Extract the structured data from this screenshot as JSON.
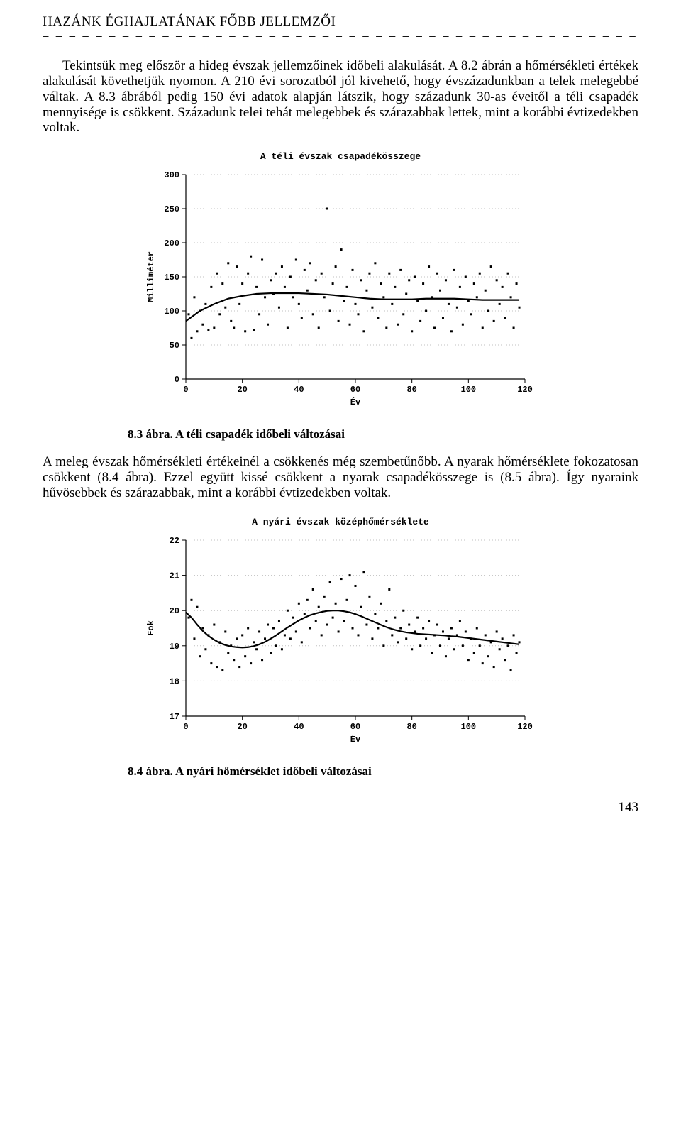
{
  "header": "HAZÁNK ÉGHAJLATÁNAK FŐBB JELLEMZŐI",
  "dashline": "— — — — — — — — — — — — — — — — — — — — — — — — — — — — — — — — — — — — — — — — — — — — — — — — — — — — — — — — — — — — — — — — — — — — —",
  "para1": "Tekintsük meg először a hideg évszak jellemzőinek időbeli alakulását. A 8.2 ábrán a hőmérsékleti értékek alakulását követhetjük nyomon. A 210 évi sorozatból jól kivehető, hogy évszázadunkban a telek melegebbé váltak. A 8.3 ábrából pedig 150  évi adatok alapján látszik, hogy századunk 30-as éveitől a téli csapadék mennyisége is csökkent. Századunk telei tehát melegebbek és szárazabbak lettek, mint a korábbi évtizedekben voltak.",
  "chart1": {
    "type": "scatter-with-curve",
    "title": "A téli évszak csapadékösszege",
    "xlabel": "Év",
    "ylabel": "Milliméter",
    "xlim": [
      0,
      120
    ],
    "ylim": [
      0,
      300
    ],
    "xticks": [
      0,
      20,
      40,
      60,
      80,
      100,
      120
    ],
    "yticks": [
      0,
      50,
      100,
      150,
      200,
      250,
      300
    ],
    "point_color": "#000000",
    "curve_color": "#000000",
    "grid_color": "#c0c0c0",
    "background_color": "#ffffff",
    "axis_font": "Courier New",
    "axis_fontsize": 12,
    "marker_size": 3,
    "curve": [
      [
        0,
        85
      ],
      [
        5,
        100
      ],
      [
        10,
        110
      ],
      [
        15,
        118
      ],
      [
        20,
        122
      ],
      [
        25,
        125
      ],
      [
        30,
        126
      ],
      [
        35,
        126
      ],
      [
        40,
        126
      ],
      [
        45,
        125
      ],
      [
        50,
        124
      ],
      [
        55,
        122
      ],
      [
        60,
        120
      ],
      [
        65,
        118
      ],
      [
        70,
        117
      ],
      [
        75,
        117
      ],
      [
        80,
        117
      ],
      [
        85,
        118
      ],
      [
        90,
        118
      ],
      [
        95,
        118
      ],
      [
        100,
        117
      ],
      [
        105,
        116
      ],
      [
        110,
        116
      ],
      [
        115,
        116
      ],
      [
        118,
        116
      ]
    ],
    "points": [
      [
        1,
        95
      ],
      [
        2,
        60
      ],
      [
        3,
        120
      ],
      [
        4,
        70
      ],
      [
        5,
        100
      ],
      [
        6,
        80
      ],
      [
        7,
        110
      ],
      [
        8,
        72
      ],
      [
        9,
        135
      ],
      [
        10,
        75
      ],
      [
        11,
        155
      ],
      [
        12,
        95
      ],
      [
        13,
        140
      ],
      [
        14,
        105
      ],
      [
        15,
        170
      ],
      [
        16,
        85
      ],
      [
        17,
        75
      ],
      [
        18,
        165
      ],
      [
        19,
        110
      ],
      [
        20,
        140
      ],
      [
        21,
        70
      ],
      [
        22,
        155
      ],
      [
        23,
        180
      ],
      [
        24,
        72
      ],
      [
        25,
        135
      ],
      [
        26,
        95
      ],
      [
        27,
        175
      ],
      [
        28,
        120
      ],
      [
        29,
        80
      ],
      [
        30,
        145
      ],
      [
        31,
        125
      ],
      [
        32,
        155
      ],
      [
        33,
        105
      ],
      [
        34,
        165
      ],
      [
        35,
        135
      ],
      [
        36,
        75
      ],
      [
        37,
        150
      ],
      [
        38,
        120
      ],
      [
        39,
        175
      ],
      [
        40,
        110
      ],
      [
        41,
        90
      ],
      [
        42,
        160
      ],
      [
        43,
        130
      ],
      [
        44,
        170
      ],
      [
        45,
        95
      ],
      [
        46,
        145
      ],
      [
        47,
        75
      ],
      [
        48,
        155
      ],
      [
        49,
        120
      ],
      [
        50,
        250
      ],
      [
        51,
        100
      ],
      [
        52,
        140
      ],
      [
        53,
        165
      ],
      [
        54,
        85
      ],
      [
        55,
        190
      ],
      [
        56,
        115
      ],
      [
        57,
        135
      ],
      [
        58,
        80
      ],
      [
        59,
        160
      ],
      [
        60,
        110
      ],
      [
        61,
        95
      ],
      [
        62,
        145
      ],
      [
        63,
        70
      ],
      [
        64,
        130
      ],
      [
        65,
        155
      ],
      [
        66,
        105
      ],
      [
        67,
        170
      ],
      [
        68,
        90
      ],
      [
        69,
        140
      ],
      [
        70,
        120
      ],
      [
        71,
        75
      ],
      [
        72,
        155
      ],
      [
        73,
        110
      ],
      [
        74,
        135
      ],
      [
        75,
        80
      ],
      [
        76,
        160
      ],
      [
        77,
        95
      ],
      [
        78,
        125
      ],
      [
        79,
        145
      ],
      [
        80,
        70
      ],
      [
        81,
        150
      ],
      [
        82,
        115
      ],
      [
        83,
        85
      ],
      [
        84,
        140
      ],
      [
        85,
        100
      ],
      [
        86,
        165
      ],
      [
        87,
        120
      ],
      [
        88,
        75
      ],
      [
        89,
        155
      ],
      [
        90,
        130
      ],
      [
        91,
        90
      ],
      [
        92,
        145
      ],
      [
        93,
        110
      ],
      [
        94,
        70
      ],
      [
        95,
        160
      ],
      [
        96,
        105
      ],
      [
        97,
        135
      ],
      [
        98,
        80
      ],
      [
        99,
        150
      ],
      [
        100,
        115
      ],
      [
        101,
        95
      ],
      [
        102,
        140
      ],
      [
        103,
        120
      ],
      [
        104,
        155
      ],
      [
        105,
        75
      ],
      [
        106,
        130
      ],
      [
        107,
        100
      ],
      [
        108,
        165
      ],
      [
        109,
        85
      ],
      [
        110,
        145
      ],
      [
        111,
        110
      ],
      [
        112,
        135
      ],
      [
        113,
        90
      ],
      [
        114,
        155
      ],
      [
        115,
        120
      ],
      [
        116,
        75
      ],
      [
        117,
        140
      ],
      [
        118,
        105
      ]
    ]
  },
  "caption1_num": "8.3 ábra.",
  "caption1_txt": " A téli csapadék időbeli változásai",
  "para2": "A meleg évszak hőmérsékleti értékeinél a csökkenés még  szembetűnőbb. A nyarak hőmérséklete fokozatosan csökkent (8.4 ábra). Ezzel együtt kissé csökkent a nyarak csapadékösszege is (8.5 ábra). Így nyaraink hűvösebbek és szárazabbak, mint a korábbi évtizedekben voltak.",
  "chart2": {
    "type": "scatter-with-curve",
    "title": "A nyári évszak középhőmérséklete",
    "xlabel": "Év",
    "ylabel": "Fok",
    "xlim": [
      0,
      120
    ],
    "ylim": [
      17,
      22
    ],
    "xticks": [
      0,
      20,
      40,
      60,
      80,
      100,
      120
    ],
    "yticks": [
      17,
      18,
      19,
      20,
      21,
      22
    ],
    "point_color": "#000000",
    "curve_color": "#000000",
    "grid_color": "#c0c0c0",
    "background_color": "#ffffff",
    "axis_font": "Courier New",
    "axis_fontsize": 12,
    "marker_size": 3,
    "curve": [
      [
        0,
        19.95
      ],
      [
        2,
        19.8
      ],
      [
        4,
        19.6
      ],
      [
        6,
        19.42
      ],
      [
        8,
        19.28
      ],
      [
        10,
        19.17
      ],
      [
        12,
        19.08
      ],
      [
        14,
        19.02
      ],
      [
        16,
        18.98
      ],
      [
        18,
        18.96
      ],
      [
        20,
        18.95
      ],
      [
        22,
        18.96
      ],
      [
        24,
        18.99
      ],
      [
        26,
        19.04
      ],
      [
        28,
        19.11
      ],
      [
        30,
        19.2
      ],
      [
        32,
        19.3
      ],
      [
        34,
        19.41
      ],
      [
        36,
        19.52
      ],
      [
        38,
        19.62
      ],
      [
        40,
        19.72
      ],
      [
        42,
        19.8
      ],
      [
        44,
        19.87
      ],
      [
        46,
        19.92
      ],
      [
        48,
        19.96
      ],
      [
        50,
        19.99
      ],
      [
        52,
        20.0
      ],
      [
        54,
        20.0
      ],
      [
        56,
        19.98
      ],
      [
        58,
        19.95
      ],
      [
        60,
        19.9
      ],
      [
        62,
        19.84
      ],
      [
        64,
        19.77
      ],
      [
        66,
        19.7
      ],
      [
        68,
        19.63
      ],
      [
        70,
        19.56
      ],
      [
        72,
        19.5
      ],
      [
        74,
        19.45
      ],
      [
        76,
        19.41
      ],
      [
        78,
        19.38
      ],
      [
        80,
        19.36
      ],
      [
        82,
        19.34
      ],
      [
        84,
        19.33
      ],
      [
        86,
        19.32
      ],
      [
        88,
        19.31
      ],
      [
        90,
        19.3
      ],
      [
        92,
        19.29
      ],
      [
        94,
        19.27
      ],
      [
        96,
        19.26
      ],
      [
        98,
        19.24
      ],
      [
        100,
        19.22
      ],
      [
        102,
        19.2
      ],
      [
        104,
        19.18
      ],
      [
        106,
        19.16
      ],
      [
        108,
        19.14
      ],
      [
        110,
        19.12
      ],
      [
        112,
        19.1
      ],
      [
        114,
        19.08
      ],
      [
        116,
        19.06
      ],
      [
        118,
        19.04
      ]
    ],
    "points": [
      [
        1,
        19.8
      ],
      [
        2,
        20.3
      ],
      [
        3,
        19.2
      ],
      [
        4,
        20.1
      ],
      [
        5,
        18.7
      ],
      [
        6,
        19.5
      ],
      [
        7,
        18.9
      ],
      [
        8,
        19.3
      ],
      [
        9,
        18.5
      ],
      [
        10,
        19.6
      ],
      [
        11,
        18.4
      ],
      [
        12,
        19.1
      ],
      [
        13,
        18.3
      ],
      [
        14,
        19.4
      ],
      [
        15,
        18.8
      ],
      [
        16,
        19.0
      ],
      [
        17,
        18.6
      ],
      [
        18,
        19.2
      ],
      [
        19,
        18.4
      ],
      [
        20,
        19.3
      ],
      [
        21,
        18.7
      ],
      [
        22,
        19.5
      ],
      [
        23,
        18.5
      ],
      [
        24,
        19.1
      ],
      [
        25,
        18.9
      ],
      [
        26,
        19.4
      ],
      [
        27,
        18.6
      ],
      [
        28,
        19.2
      ],
      [
        29,
        19.6
      ],
      [
        30,
        18.8
      ],
      [
        31,
        19.5
      ],
      [
        32,
        19.0
      ],
      [
        33,
        19.7
      ],
      [
        34,
        18.9
      ],
      [
        35,
        19.3
      ],
      [
        36,
        20.0
      ],
      [
        37,
        19.2
      ],
      [
        38,
        19.8
      ],
      [
        39,
        19.4
      ],
      [
        40,
        20.2
      ],
      [
        41,
        19.1
      ],
      [
        42,
        19.9
      ],
      [
        43,
        20.3
      ],
      [
        44,
        19.5
      ],
      [
        45,
        20.6
      ],
      [
        46,
        19.7
      ],
      [
        47,
        20.1
      ],
      [
        48,
        19.3
      ],
      [
        49,
        20.4
      ],
      [
        50,
        19.6
      ],
      [
        51,
        20.8
      ],
      [
        52,
        19.8
      ],
      [
        53,
        20.2
      ],
      [
        54,
        19.4
      ],
      [
        55,
        20.9
      ],
      [
        56,
        19.7
      ],
      [
        57,
        20.3
      ],
      [
        58,
        21.0
      ],
      [
        59,
        19.5
      ],
      [
        60,
        20.7
      ],
      [
        61,
        19.3
      ],
      [
        62,
        20.1
      ],
      [
        63,
        21.1
      ],
      [
        64,
        19.6
      ],
      [
        65,
        20.4
      ],
      [
        66,
        19.2
      ],
      [
        67,
        19.9
      ],
      [
        68,
        19.5
      ],
      [
        69,
        20.2
      ],
      [
        70,
        19.0
      ],
      [
        71,
        19.7
      ],
      [
        72,
        20.6
      ],
      [
        73,
        19.3
      ],
      [
        74,
        19.8
      ],
      [
        75,
        19.1
      ],
      [
        76,
        19.5
      ],
      [
        77,
        20.0
      ],
      [
        78,
        19.2
      ],
      [
        79,
        19.6
      ],
      [
        80,
        18.9
      ],
      [
        81,
        19.4
      ],
      [
        82,
        19.8
      ],
      [
        83,
        19.0
      ],
      [
        84,
        19.5
      ],
      [
        85,
        19.2
      ],
      [
        86,
        19.7
      ],
      [
        87,
        18.8
      ],
      [
        88,
        19.3
      ],
      [
        89,
        19.6
      ],
      [
        90,
        19.0
      ],
      [
        91,
        19.4
      ],
      [
        92,
        18.7
      ],
      [
        93,
        19.2
      ],
      [
        94,
        19.5
      ],
      [
        95,
        18.9
      ],
      [
        96,
        19.3
      ],
      [
        97,
        19.7
      ],
      [
        98,
        19.0
      ],
      [
        99,
        19.4
      ],
      [
        100,
        18.6
      ],
      [
        101,
        19.2
      ],
      [
        102,
        18.8
      ],
      [
        103,
        19.5
      ],
      [
        104,
        19.0
      ],
      [
        105,
        18.5
      ],
      [
        106,
        19.3
      ],
      [
        107,
        18.7
      ],
      [
        108,
        19.1
      ],
      [
        109,
        18.4
      ],
      [
        110,
        19.4
      ],
      [
        111,
        18.9
      ],
      [
        112,
        19.2
      ],
      [
        113,
        18.6
      ],
      [
        114,
        19.0
      ],
      [
        115,
        18.3
      ],
      [
        116,
        19.3
      ],
      [
        117,
        18.8
      ],
      [
        118,
        19.1
      ]
    ]
  },
  "caption2_num": "8.4 ábra.",
  "caption2_txt": " A nyári hőmérséklet időbeli változásai",
  "pagenum": "143"
}
